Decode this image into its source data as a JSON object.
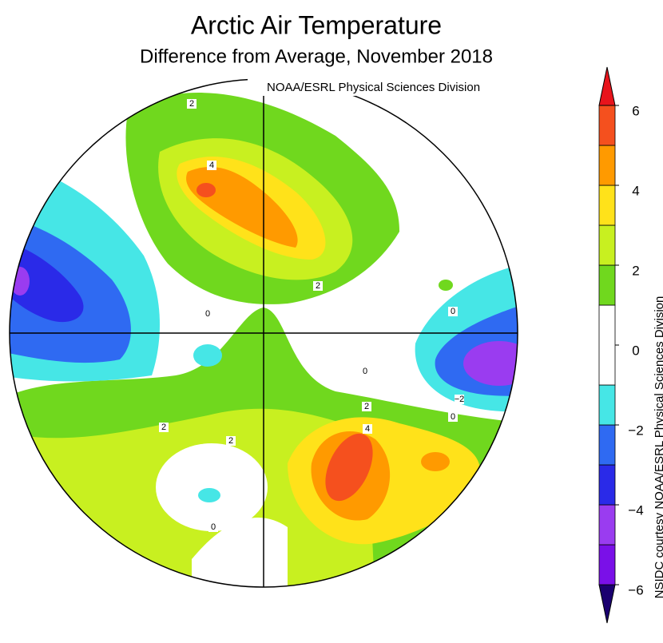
{
  "map": {
    "title": "Arctic Air Temperature",
    "subtitle": "Difference from Average, November 2018",
    "credit": "NOAA/ESRL Physical Sciences Division",
    "side_credit": "NSIDC courtesy NOAA/ESRL Physical Sciences Division",
    "contour_labels": [
      "2",
      "4",
      "2",
      "0",
      "0",
      "0",
      "2",
      "4",
      "−2",
      "0",
      "2",
      "2",
      "0"
    ],
    "colorbar": {
      "range": [
        -6,
        6
      ],
      "levels": [
        -6,
        -5,
        -4,
        -3,
        -2,
        -1,
        1,
        2,
        3,
        4,
        5,
        6
      ],
      "colors": [
        "#1a0070",
        "#7a10e8",
        "#9a3cf0",
        "#2a2ae8",
        "#2f6af2",
        "#46e6e6",
        "#ffffff",
        "#70d81e",
        "#c8f020",
        "#ffe21a",
        "#ff9a00",
        "#f5501e",
        "#e8141c"
      ],
      "ticks": [
        {
          "value": 6,
          "label": "6"
        },
        {
          "value": 4,
          "label": "4"
        },
        {
          "value": 2,
          "label": "2"
        },
        {
          "value": 0,
          "label": "0"
        },
        {
          "value": -2,
          "label": "−2"
        },
        {
          "value": -4,
          "label": "−4"
        },
        {
          "value": -6,
          "label": "−6"
        }
      ]
    }
  }
}
